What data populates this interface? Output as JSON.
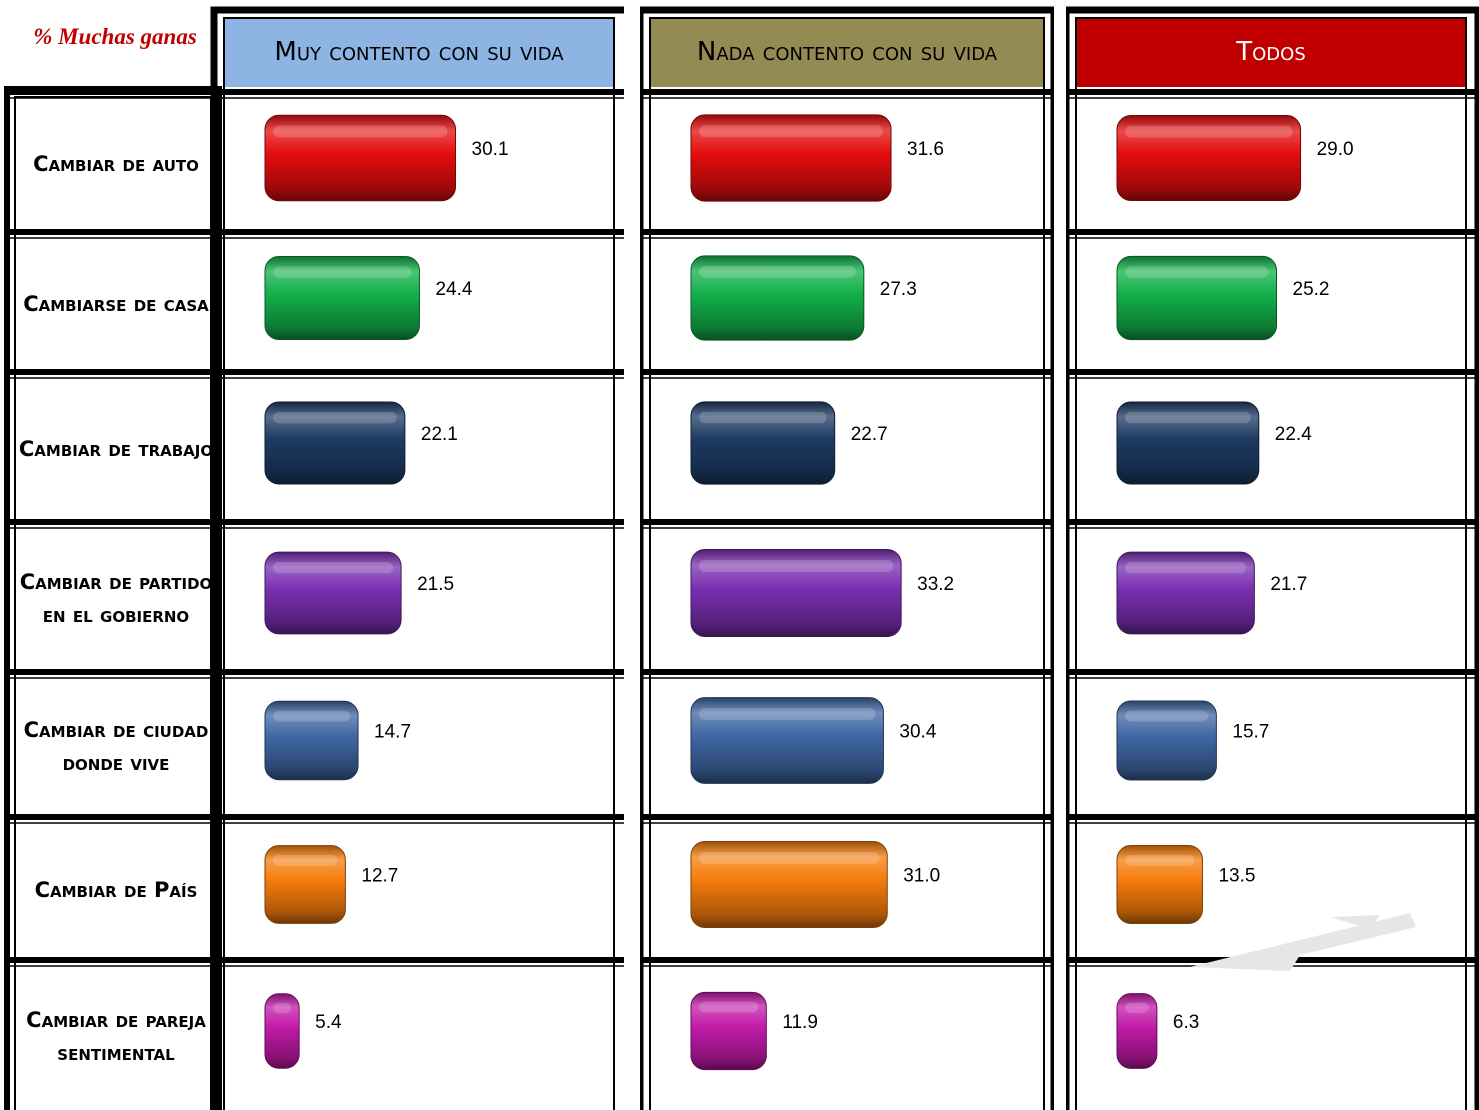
{
  "corner_label": "% Muchas ganas",
  "columns": [
    {
      "id": "muy",
      "title": "Muy contento con su vida",
      "header_bg": "#8db4e2",
      "text_color": "#000000"
    },
    {
      "id": "nada",
      "title": "Nada contento con su vida",
      "header_bg": "#948a54",
      "text_color": "#000000"
    },
    {
      "id": "todos",
      "title": "Todos",
      "header_bg": "#c00000",
      "text_color": "#ffffff"
    }
  ],
  "rows": [
    {
      "label": "Cambiar de auto",
      "color": "#e30d0d"
    },
    {
      "label": "Cambiarse de casa",
      "color": "#12b04a"
    },
    {
      "label": "Cambiar de trabajo",
      "color": "#1e3b64"
    },
    {
      "label": "Cambiar de partido en el gobierno",
      "color": "#7a2fb0"
    },
    {
      "label": "Cambiar de ciudad donde vive",
      "color": "#3f67a3"
    },
    {
      "label": "Cambiar de País",
      "color": "#f57c0c"
    },
    {
      "label": "Cambiar de pareja sentimental",
      "color": "#c21aa8"
    }
  ],
  "chart_data": {
    "type": "bar",
    "title": "% Muchas ganas",
    "categories": [
      "Cambiar de auto",
      "Cambiarse de casa",
      "Cambiar de trabajo",
      "Cambiar de partido en el gobierno",
      "Cambiar de ciudad donde vive",
      "Cambiar de País",
      "Cambiar de pareja sentimental"
    ],
    "series": [
      {
        "name": "Muy contento con su vida",
        "values": [
          30.1,
          24.4,
          22.1,
          21.5,
          14.7,
          12.7,
          5.4
        ]
      },
      {
        "name": "Nada contento con su vida",
        "values": [
          31.6,
          27.3,
          22.7,
          33.2,
          30.4,
          31.0,
          11.9
        ]
      },
      {
        "name": "Todos",
        "values": [
          29.0,
          25.2,
          22.4,
          21.7,
          15.7,
          13.5,
          6.3
        ]
      }
    ],
    "value_labels": [
      [
        "30.1",
        "24.4",
        "22.1",
        "21.5",
        "14.7",
        "12.7",
        "5.4"
      ],
      [
        "31.6",
        "27.3",
        "22.7",
        "33.2",
        "30.4",
        "31.0",
        "11.9"
      ],
      [
        "29.0",
        "25.2",
        "22.4",
        "21.7",
        "15.7",
        "13.5",
        "6.3"
      ]
    ]
  }
}
